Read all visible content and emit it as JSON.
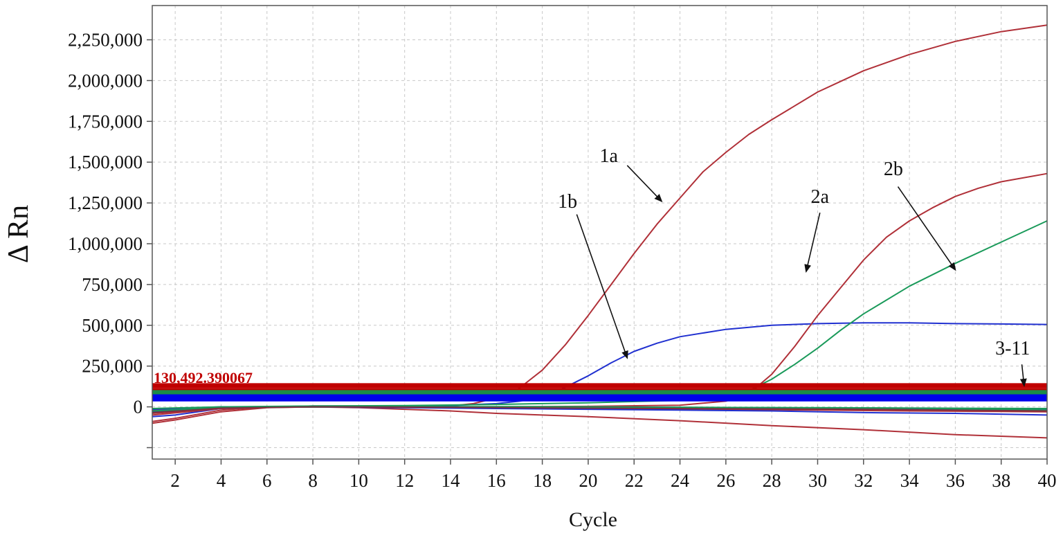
{
  "chart_data": {
    "type": "line",
    "xlabel": "Cycle",
    "ylabel": "Δ Rn",
    "xlim": [
      1,
      40
    ],
    "ylim": [
      -320000,
      2460000
    ],
    "grid": true,
    "x_ticks": [
      2,
      4,
      6,
      8,
      10,
      12,
      14,
      16,
      18,
      20,
      22,
      24,
      26,
      28,
      30,
      32,
      34,
      36,
      38,
      40
    ],
    "y_ticks": [
      {
        "value": 2250000,
        "label": "2,250,000"
      },
      {
        "value": 2000000,
        "label": "2,000,000"
      },
      {
        "value": 1750000,
        "label": "1,750,000"
      },
      {
        "value": 1500000,
        "label": "1,500,000"
      },
      {
        "value": 1250000,
        "label": "1,250,000"
      },
      {
        "value": 1000000,
        "label": "1,000,000"
      },
      {
        "value": 750000,
        "label": "750,000"
      },
      {
        "value": 500000,
        "label": "500,000"
      },
      {
        "value": 250000,
        "label": "250,000"
      },
      {
        "value": 0,
        "label": "0"
      },
      {
        "value": -250000,
        "label": ""
      }
    ],
    "thresholds": [
      {
        "value": 130492,
        "label": "130,492.390067",
        "color": "#c00000"
      },
      {
        "value": 100000,
        "label": "",
        "color": "#c00000"
      },
      {
        "value": 88000,
        "label": "",
        "color": "#1a8a4a"
      },
      {
        "value": 77000,
        "label": "",
        "color": "#1a8a4a"
      },
      {
        "value": 62000,
        "label": "",
        "color": "#0000ee"
      },
      {
        "value": 48000,
        "label": "",
        "color": "#0000ee"
      }
    ],
    "series": [
      {
        "color": "#b03038",
        "points": [
          [
            1,
            -90000
          ],
          [
            2,
            -70000
          ],
          [
            4,
            -20000
          ],
          [
            6,
            0
          ],
          [
            8,
            5000
          ],
          [
            10,
            5000
          ],
          [
            12,
            3000
          ],
          [
            14,
            5000
          ],
          [
            15,
            20000
          ],
          [
            16,
            55000
          ],
          [
            17,
            115000
          ],
          [
            18,
            225000
          ],
          [
            19,
            380000
          ],
          [
            20,
            560000
          ],
          [
            21,
            750000
          ],
          [
            22,
            940000
          ],
          [
            23,
            1120000
          ],
          [
            24,
            1280000
          ],
          [
            25,
            1440000
          ],
          [
            26,
            1560000
          ],
          [
            27,
            1670000
          ],
          [
            28,
            1760000
          ],
          [
            30,
            1930000
          ],
          [
            32,
            2060000
          ],
          [
            34,
            2160000
          ],
          [
            36,
            2240000
          ],
          [
            38,
            2300000
          ],
          [
            40,
            2340000
          ]
        ]
      },
      {
        "color": "#2030d0",
        "points": [
          [
            1,
            -60000
          ],
          [
            2,
            -50000
          ],
          [
            4,
            -10000
          ],
          [
            6,
            0
          ],
          [
            8,
            5000
          ],
          [
            10,
            5000
          ],
          [
            12,
            5000
          ],
          [
            14,
            8000
          ],
          [
            16,
            20000
          ],
          [
            17,
            35000
          ],
          [
            18,
            60000
          ],
          [
            19,
            120000
          ],
          [
            20,
            190000
          ],
          [
            21,
            270000
          ],
          [
            22,
            340000
          ],
          [
            23,
            390000
          ],
          [
            24,
            430000
          ],
          [
            26,
            475000
          ],
          [
            28,
            500000
          ],
          [
            30,
            510000
          ],
          [
            32,
            515000
          ],
          [
            34,
            515000
          ],
          [
            36,
            510000
          ],
          [
            38,
            508000
          ],
          [
            40,
            505000
          ]
        ]
      },
      {
        "color": "#b03038",
        "points": [
          [
            1,
            -40000
          ],
          [
            2,
            -30000
          ],
          [
            4,
            -5000
          ],
          [
            6,
            0
          ],
          [
            10,
            0
          ],
          [
            14,
            0
          ],
          [
            20,
            3000
          ],
          [
            24,
            10000
          ],
          [
            26,
            35000
          ],
          [
            27,
            80000
          ],
          [
            28,
            200000
          ],
          [
            29,
            370000
          ],
          [
            30,
            560000
          ],
          [
            31,
            730000
          ],
          [
            32,
            900000
          ],
          [
            33,
            1040000
          ],
          [
            34,
            1140000
          ],
          [
            35,
            1220000
          ],
          [
            36,
            1290000
          ],
          [
            37,
            1340000
          ],
          [
            38,
            1380000
          ],
          [
            40,
            1430000
          ]
        ]
      },
      {
        "color": "#1a9a5a",
        "points": [
          [
            1,
            -30000
          ],
          [
            2,
            -20000
          ],
          [
            4,
            0
          ],
          [
            8,
            5000
          ],
          [
            12,
            8000
          ],
          [
            16,
            15000
          ],
          [
            20,
            25000
          ],
          [
            24,
            40000
          ],
          [
            26,
            65000
          ],
          [
            27,
            100000
          ],
          [
            28,
            170000
          ],
          [
            29,
            260000
          ],
          [
            30,
            360000
          ],
          [
            31,
            470000
          ],
          [
            32,
            570000
          ],
          [
            34,
            740000
          ],
          [
            36,
            880000
          ],
          [
            38,
            1010000
          ],
          [
            40,
            1140000
          ]
        ]
      },
      {
        "color": "#b03038",
        "points": [
          [
            1,
            -100000
          ],
          [
            2,
            -80000
          ],
          [
            4,
            -30000
          ],
          [
            6,
            -5000
          ],
          [
            8,
            0
          ],
          [
            10,
            -5000
          ],
          [
            12,
            -15000
          ],
          [
            14,
            -25000
          ],
          [
            16,
            -40000
          ],
          [
            18,
            -50000
          ],
          [
            20,
            -60000
          ],
          [
            24,
            -85000
          ],
          [
            28,
            -115000
          ],
          [
            32,
            -140000
          ],
          [
            36,
            -170000
          ],
          [
            40,
            -190000
          ]
        ]
      },
      {
        "color": "#b03038",
        "points": [
          [
            1,
            -50000
          ],
          [
            4,
            -10000
          ],
          [
            6,
            0
          ],
          [
            10,
            0
          ],
          [
            14,
            -5000
          ],
          [
            20,
            -10000
          ],
          [
            26,
            -15000
          ],
          [
            30,
            -20000
          ],
          [
            34,
            -25000
          ],
          [
            40,
            -30000
          ]
        ]
      },
      {
        "color": "#b03038",
        "points": [
          [
            1,
            -20000
          ],
          [
            4,
            -5000
          ],
          [
            8,
            0
          ],
          [
            14,
            0
          ],
          [
            20,
            -5000
          ],
          [
            26,
            -8000
          ],
          [
            32,
            -10000
          ],
          [
            40,
            -15000
          ]
        ]
      },
      {
        "color": "#2030d0",
        "points": [
          [
            1,
            -30000
          ],
          [
            4,
            -5000
          ],
          [
            8,
            0
          ],
          [
            12,
            -5000
          ],
          [
            16,
            -10000
          ],
          [
            20,
            -15000
          ],
          [
            24,
            -20000
          ],
          [
            28,
            -25000
          ],
          [
            32,
            -35000
          ],
          [
            36,
            -40000
          ],
          [
            40,
            -50000
          ]
        ]
      },
      {
        "color": "#2030d0",
        "points": [
          [
            1,
            -15000
          ],
          [
            4,
            0
          ],
          [
            10,
            0
          ],
          [
            16,
            -3000
          ],
          [
            22,
            -5000
          ],
          [
            28,
            -10000
          ],
          [
            34,
            -12000
          ],
          [
            40,
            -15000
          ]
        ]
      },
      {
        "color": "#1a9a5a",
        "points": [
          [
            1,
            -25000
          ],
          [
            4,
            -3000
          ],
          [
            10,
            0
          ],
          [
            18,
            0
          ],
          [
            24,
            -3000
          ],
          [
            30,
            -5000
          ],
          [
            40,
            -10000
          ]
        ]
      },
      {
        "color": "#1a9a5a",
        "points": [
          [
            1,
            -10000
          ],
          [
            4,
            0
          ],
          [
            12,
            2000
          ],
          [
            20,
            0
          ],
          [
            28,
            -5000
          ],
          [
            34,
            -8000
          ],
          [
            40,
            -20000
          ]
        ]
      },
      {
        "color": "#7a3040",
        "points": [
          [
            1,
            -35000
          ],
          [
            4,
            -8000
          ],
          [
            8,
            0
          ],
          [
            14,
            -3000
          ],
          [
            20,
            -8000
          ],
          [
            26,
            -12000
          ],
          [
            32,
            -15000
          ],
          [
            40,
            -25000
          ]
        ]
      }
    ],
    "annotations": [
      {
        "text": "1a",
        "label_at": [
          20.9,
          1500000
        ],
        "arrow_from": [
          21.7,
          1480000
        ],
        "arrow_to": [
          23.2,
          1260000
        ]
      },
      {
        "text": "1b",
        "label_at": [
          19.1,
          1220000
        ],
        "arrow_from": [
          19.5,
          1180000
        ],
        "arrow_to": [
          21.7,
          300000
        ]
      },
      {
        "text": "2a",
        "label_at": [
          30.1,
          1250000
        ],
        "arrow_from": [
          30.1,
          1190000
        ],
        "arrow_to": [
          29.5,
          830000
        ]
      },
      {
        "text": "2b",
        "label_at": [
          33.3,
          1420000
        ],
        "arrow_from": [
          33.5,
          1350000
        ],
        "arrow_to": [
          36.0,
          840000
        ]
      },
      {
        "text": "3-11",
        "label_at": [
          38.5,
          320000
        ],
        "arrow_from": [
          38.9,
          260000
        ],
        "arrow_to": [
          39.0,
          130000
        ]
      }
    ]
  }
}
